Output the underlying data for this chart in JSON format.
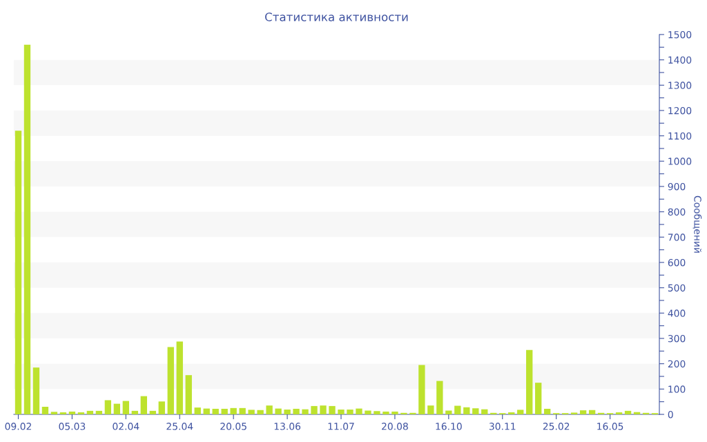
{
  "chart_data": {
    "type": "bar",
    "title": "Статистика активности",
    "ylabel": "Сообщений",
    "categories": [
      "09.02",
      null,
      null,
      null,
      null,
      null,
      "05.03",
      null,
      null,
      null,
      null,
      null,
      "02.04",
      null,
      null,
      null,
      null,
      null,
      "25.04",
      null,
      null,
      null,
      null,
      null,
      "20.05",
      null,
      null,
      null,
      null,
      null,
      "13.06",
      null,
      null,
      null,
      null,
      null,
      "11.07",
      null,
      null,
      null,
      null,
      null,
      "20.08",
      null,
      null,
      null,
      null,
      null,
      "16.10",
      null,
      null,
      null,
      null,
      null,
      "30.11",
      null,
      null,
      null,
      null,
      null,
      "25.02",
      null,
      null,
      null,
      null,
      null,
      "16.05",
      null,
      null,
      null,
      null,
      null
    ],
    "values": [
      1120,
      1460,
      185,
      30,
      10,
      8,
      11,
      8,
      14,
      14,
      56,
      42,
      53,
      14,
      72,
      14,
      51,
      266,
      288,
      155,
      27,
      23,
      22,
      22,
      25,
      25,
      18,
      17,
      35,
      23,
      19,
      22,
      20,
      33,
      35,
      33,
      19,
      19,
      23,
      15,
      13,
      11,
      11,
      6,
      6,
      195,
      35,
      132,
      15,
      34,
      28,
      24,
      20,
      6,
      5,
      8,
      18,
      254,
      125,
      22,
      5,
      5,
      7,
      16,
      17,
      6,
      5,
      8,
      14,
      9,
      6,
      5
    ],
    "color": "#bde22e",
    "ylim": [
      0,
      1500
    ],
    "yticks": [
      0,
      {
        "value": 50,
        "label": null
      },
      100,
      {
        "value": 150,
        "label": null
      },
      200,
      {
        "value": 250,
        "label": null
      },
      300,
      {
        "value": 350,
        "label": null
      },
      400,
      {
        "value": 450,
        "label": null
      },
      500,
      {
        "value": 550,
        "label": null
      },
      600,
      {
        "value": 650,
        "label": null
      },
      700,
      {
        "value": 750,
        "label": null
      },
      800,
      {
        "value": 850,
        "label": null
      },
      900,
      {
        "value": 950,
        "label": null
      },
      1000,
      {
        "value": 1050,
        "label": null
      },
      1100,
      {
        "value": 1150,
        "label": null
      },
      1200,
      {
        "value": 1250,
        "label": null
      },
      1300,
      {
        "value": 1350,
        "label": null
      },
      1400,
      {
        "value": 1450,
        "label": null
      },
      1500
    ],
    "bands": [
      {
        "axis": "y",
        "from": 100,
        "to": 200,
        "color": "#f7f7f7"
      },
      {
        "axis": "y",
        "from": 300,
        "to": 400,
        "color": "#f7f7f7"
      },
      {
        "axis": "y",
        "from": 500,
        "to": 600,
        "color": "#f7f7f7"
      },
      {
        "axis": "y",
        "from": 700,
        "to": 800,
        "color": "#f7f7f7"
      },
      {
        "axis": "y",
        "from": 900,
        "to": 1000,
        "color": "#f7f7f7"
      },
      {
        "axis": "y",
        "from": 1100,
        "to": 1200,
        "color": "#f7f7f7"
      },
      {
        "axis": "y",
        "from": 1300,
        "to": 1400,
        "color": "#f7f7f7"
      }
    ]
  }
}
